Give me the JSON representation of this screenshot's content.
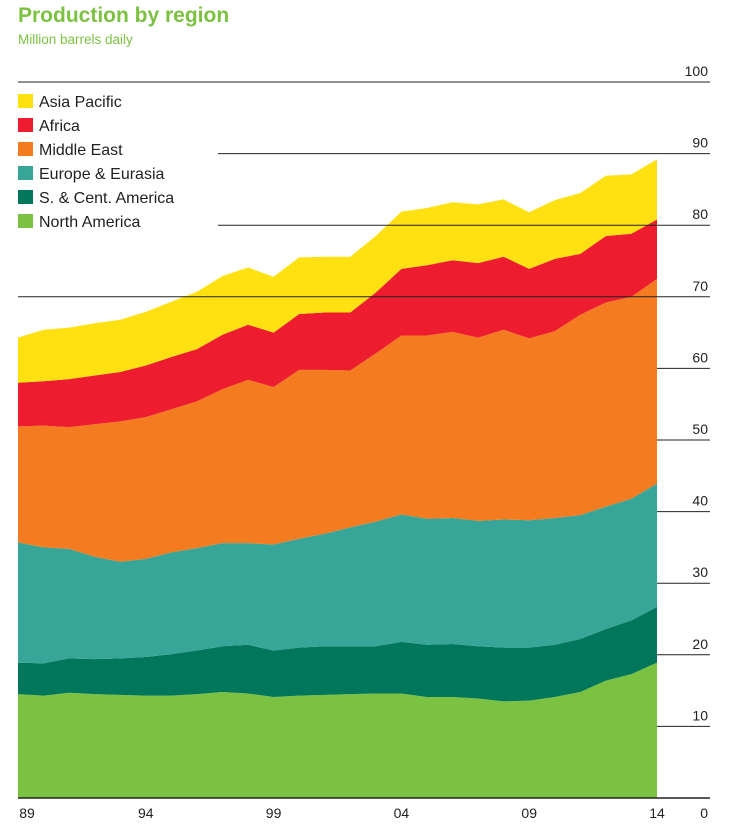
{
  "title": "Production by region",
  "subtitle": "Million barrels daily",
  "chart_data": {
    "type": "area",
    "stacked": true,
    "title": "Production by region",
    "subtitle": "Million barrels daily",
    "x": [
      1989,
      1990,
      1991,
      1992,
      1993,
      1994,
      1995,
      1996,
      1997,
      1998,
      1999,
      2000,
      2001,
      2002,
      2003,
      2004,
      2005,
      2006,
      2007,
      2008,
      2009,
      2010,
      2011,
      2012,
      2013,
      2014
    ],
    "x_tick_values": [
      1989,
      1994,
      1999,
      2004,
      2009,
      2014
    ],
    "x_tick_labels": [
      "89",
      "94",
      "99",
      "04",
      "09",
      "14"
    ],
    "y_ticks": [
      0,
      10,
      20,
      30,
      40,
      50,
      60,
      70,
      80,
      90,
      100
    ],
    "ylim": [
      0,
      100
    ],
    "grid": "horizontal lines at 70, 80, 90, 100",
    "legend_position": "top-left",
    "series": [
      {
        "name": "North America",
        "color": "#7cc242",
        "values": [
          14.5,
          14.3,
          14.7,
          14.5,
          14.4,
          14.3,
          14.3,
          14.5,
          14.8,
          14.6,
          14.1,
          14.3,
          14.4,
          14.5,
          14.6,
          14.6,
          14.1,
          14.1,
          13.9,
          13.5,
          13.6,
          14.1,
          14.8,
          16.4,
          17.3,
          18.9
        ]
      },
      {
        "name": "S. & Cent. America",
        "color": "#00775a",
        "values": [
          4.4,
          4.5,
          4.8,
          4.9,
          5.1,
          5.4,
          5.8,
          6.1,
          6.4,
          6.8,
          6.5,
          6.7,
          6.8,
          6.7,
          6.6,
          7.2,
          7.3,
          7.4,
          7.3,
          7.5,
          7.4,
          7.3,
          7.4,
          7.2,
          7.5,
          7.8
        ]
      },
      {
        "name": "Europe & Eurasia",
        "color": "#37a597",
        "values": [
          16.8,
          16.2,
          15.3,
          14.3,
          13.5,
          13.7,
          14.2,
          14.3,
          14.4,
          14.2,
          14.8,
          15.2,
          15.7,
          16.6,
          17.4,
          17.8,
          17.6,
          17.6,
          17.5,
          17.9,
          17.8,
          17.7,
          17.3,
          17.1,
          17.0,
          17.2
        ]
      },
      {
        "name": "Middle East",
        "color": "#f47b20",
        "values": [
          16.2,
          17.0,
          17.0,
          18.5,
          19.6,
          19.8,
          20.0,
          20.5,
          21.5,
          22.8,
          22.0,
          23.6,
          22.9,
          21.9,
          23.5,
          25.0,
          25.6,
          26.0,
          25.6,
          26.5,
          25.4,
          26.1,
          28.0,
          28.5,
          28.2,
          28.6
        ]
      },
      {
        "name": "Africa",
        "color": "#ed1c2e",
        "values": [
          6.1,
          6.2,
          6.7,
          6.8,
          6.9,
          7.2,
          7.3,
          7.3,
          7.6,
          7.7,
          7.6,
          7.8,
          8.0,
          8.1,
          8.5,
          9.3,
          9.8,
          10.0,
          10.4,
          10.2,
          9.7,
          10.1,
          8.5,
          9.3,
          8.8,
          8.3
        ]
      },
      {
        "name": "Asia Pacific",
        "color": "#ffe111",
        "values": [
          6.3,
          7.2,
          7.2,
          7.3,
          7.3,
          7.5,
          7.7,
          8.0,
          8.2,
          8.0,
          7.8,
          7.9,
          7.8,
          7.8,
          7.9,
          8.0,
          8.0,
          8.1,
          8.2,
          8.0,
          7.9,
          8.2,
          8.5,
          8.4,
          8.3,
          8.4
        ]
      }
    ]
  }
}
